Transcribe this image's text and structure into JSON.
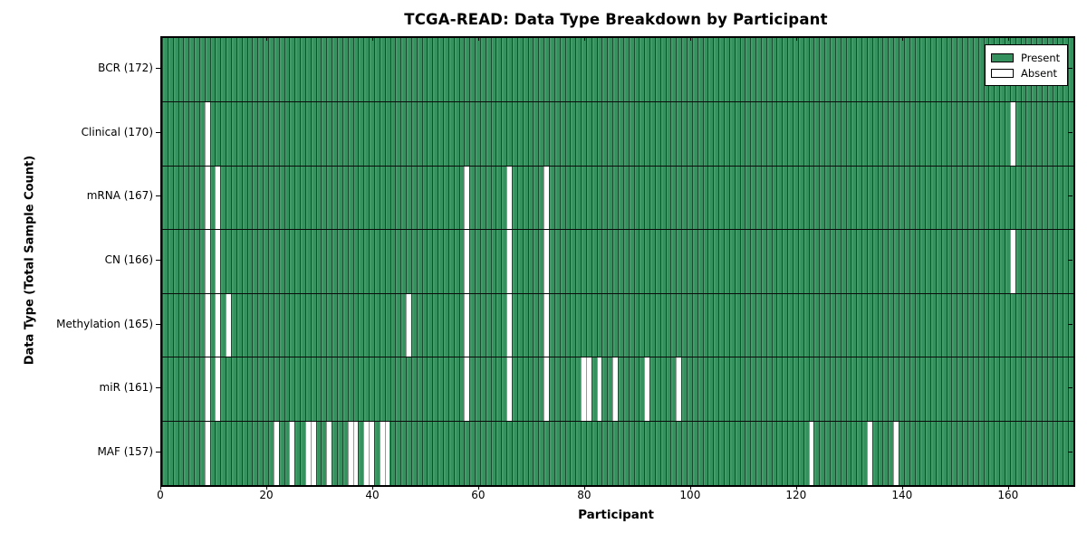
{
  "title": "TCGA-READ: Data Type Breakdown by Participant",
  "colors": {
    "present": "#35925e",
    "present_highlight": "#45a06c",
    "absent": "#ffffff",
    "grid_line": "#0b0b0b",
    "axis": "#000000"
  },
  "legend": {
    "present_label": "Present",
    "absent_label": "Absent",
    "position": "upper right"
  },
  "chart_data": {
    "type": "heatmap",
    "title": "TCGA-READ: Data Type Breakdown by Participant",
    "xlabel": "Participant",
    "ylabel": "Data Type (Total Sample Count)",
    "n_participants": 172,
    "xlim": [
      0,
      172
    ],
    "x_ticks": [
      0,
      20,
      40,
      60,
      80,
      100,
      120,
      140,
      160
    ],
    "grid": "row separators on",
    "legend_entries": [
      {
        "label": "Present",
        "color": "#35925e"
      },
      {
        "label": "Absent",
        "color": "#ffffff"
      }
    ],
    "cell_values": "1 = data type present for participant (green), 0 = absent (white)",
    "rows": [
      {
        "key": "bcr",
        "label": "BCR (172)",
        "data_type": "BCR",
        "total_sample_count": 172,
        "absent_participants": []
      },
      {
        "key": "clinical",
        "label": "Clinical (170)",
        "data_type": "Clinical",
        "total_sample_count": 170,
        "absent_participants": [
          8,
          160
        ]
      },
      {
        "key": "mrna",
        "label": "mRNA (167)",
        "data_type": "mRNA",
        "total_sample_count": 167,
        "absent_participants": [
          8,
          10,
          57,
          65,
          72
        ]
      },
      {
        "key": "cn",
        "label": "CN (166)",
        "data_type": "CN",
        "total_sample_count": 166,
        "absent_participants": [
          8,
          10,
          57,
          65,
          72,
          160
        ]
      },
      {
        "key": "methylation",
        "label": "Methylation (165)",
        "data_type": "Methylation",
        "total_sample_count": 165,
        "absent_participants": [
          8,
          10,
          12,
          46,
          57,
          65,
          72
        ]
      },
      {
        "key": "mir",
        "label": "miR (161)",
        "data_type": "miR",
        "total_sample_count": 161,
        "absent_participants": [
          8,
          10,
          57,
          65,
          72,
          79,
          80,
          82,
          85,
          91,
          97
        ]
      },
      {
        "key": "maf",
        "label": "MAF (157)",
        "data_type": "MAF",
        "total_sample_count": 157,
        "absent_participants": [
          8,
          21,
          24,
          27,
          28,
          31,
          35,
          36,
          38,
          39,
          41,
          42,
          122,
          133,
          138
        ]
      }
    ]
  }
}
